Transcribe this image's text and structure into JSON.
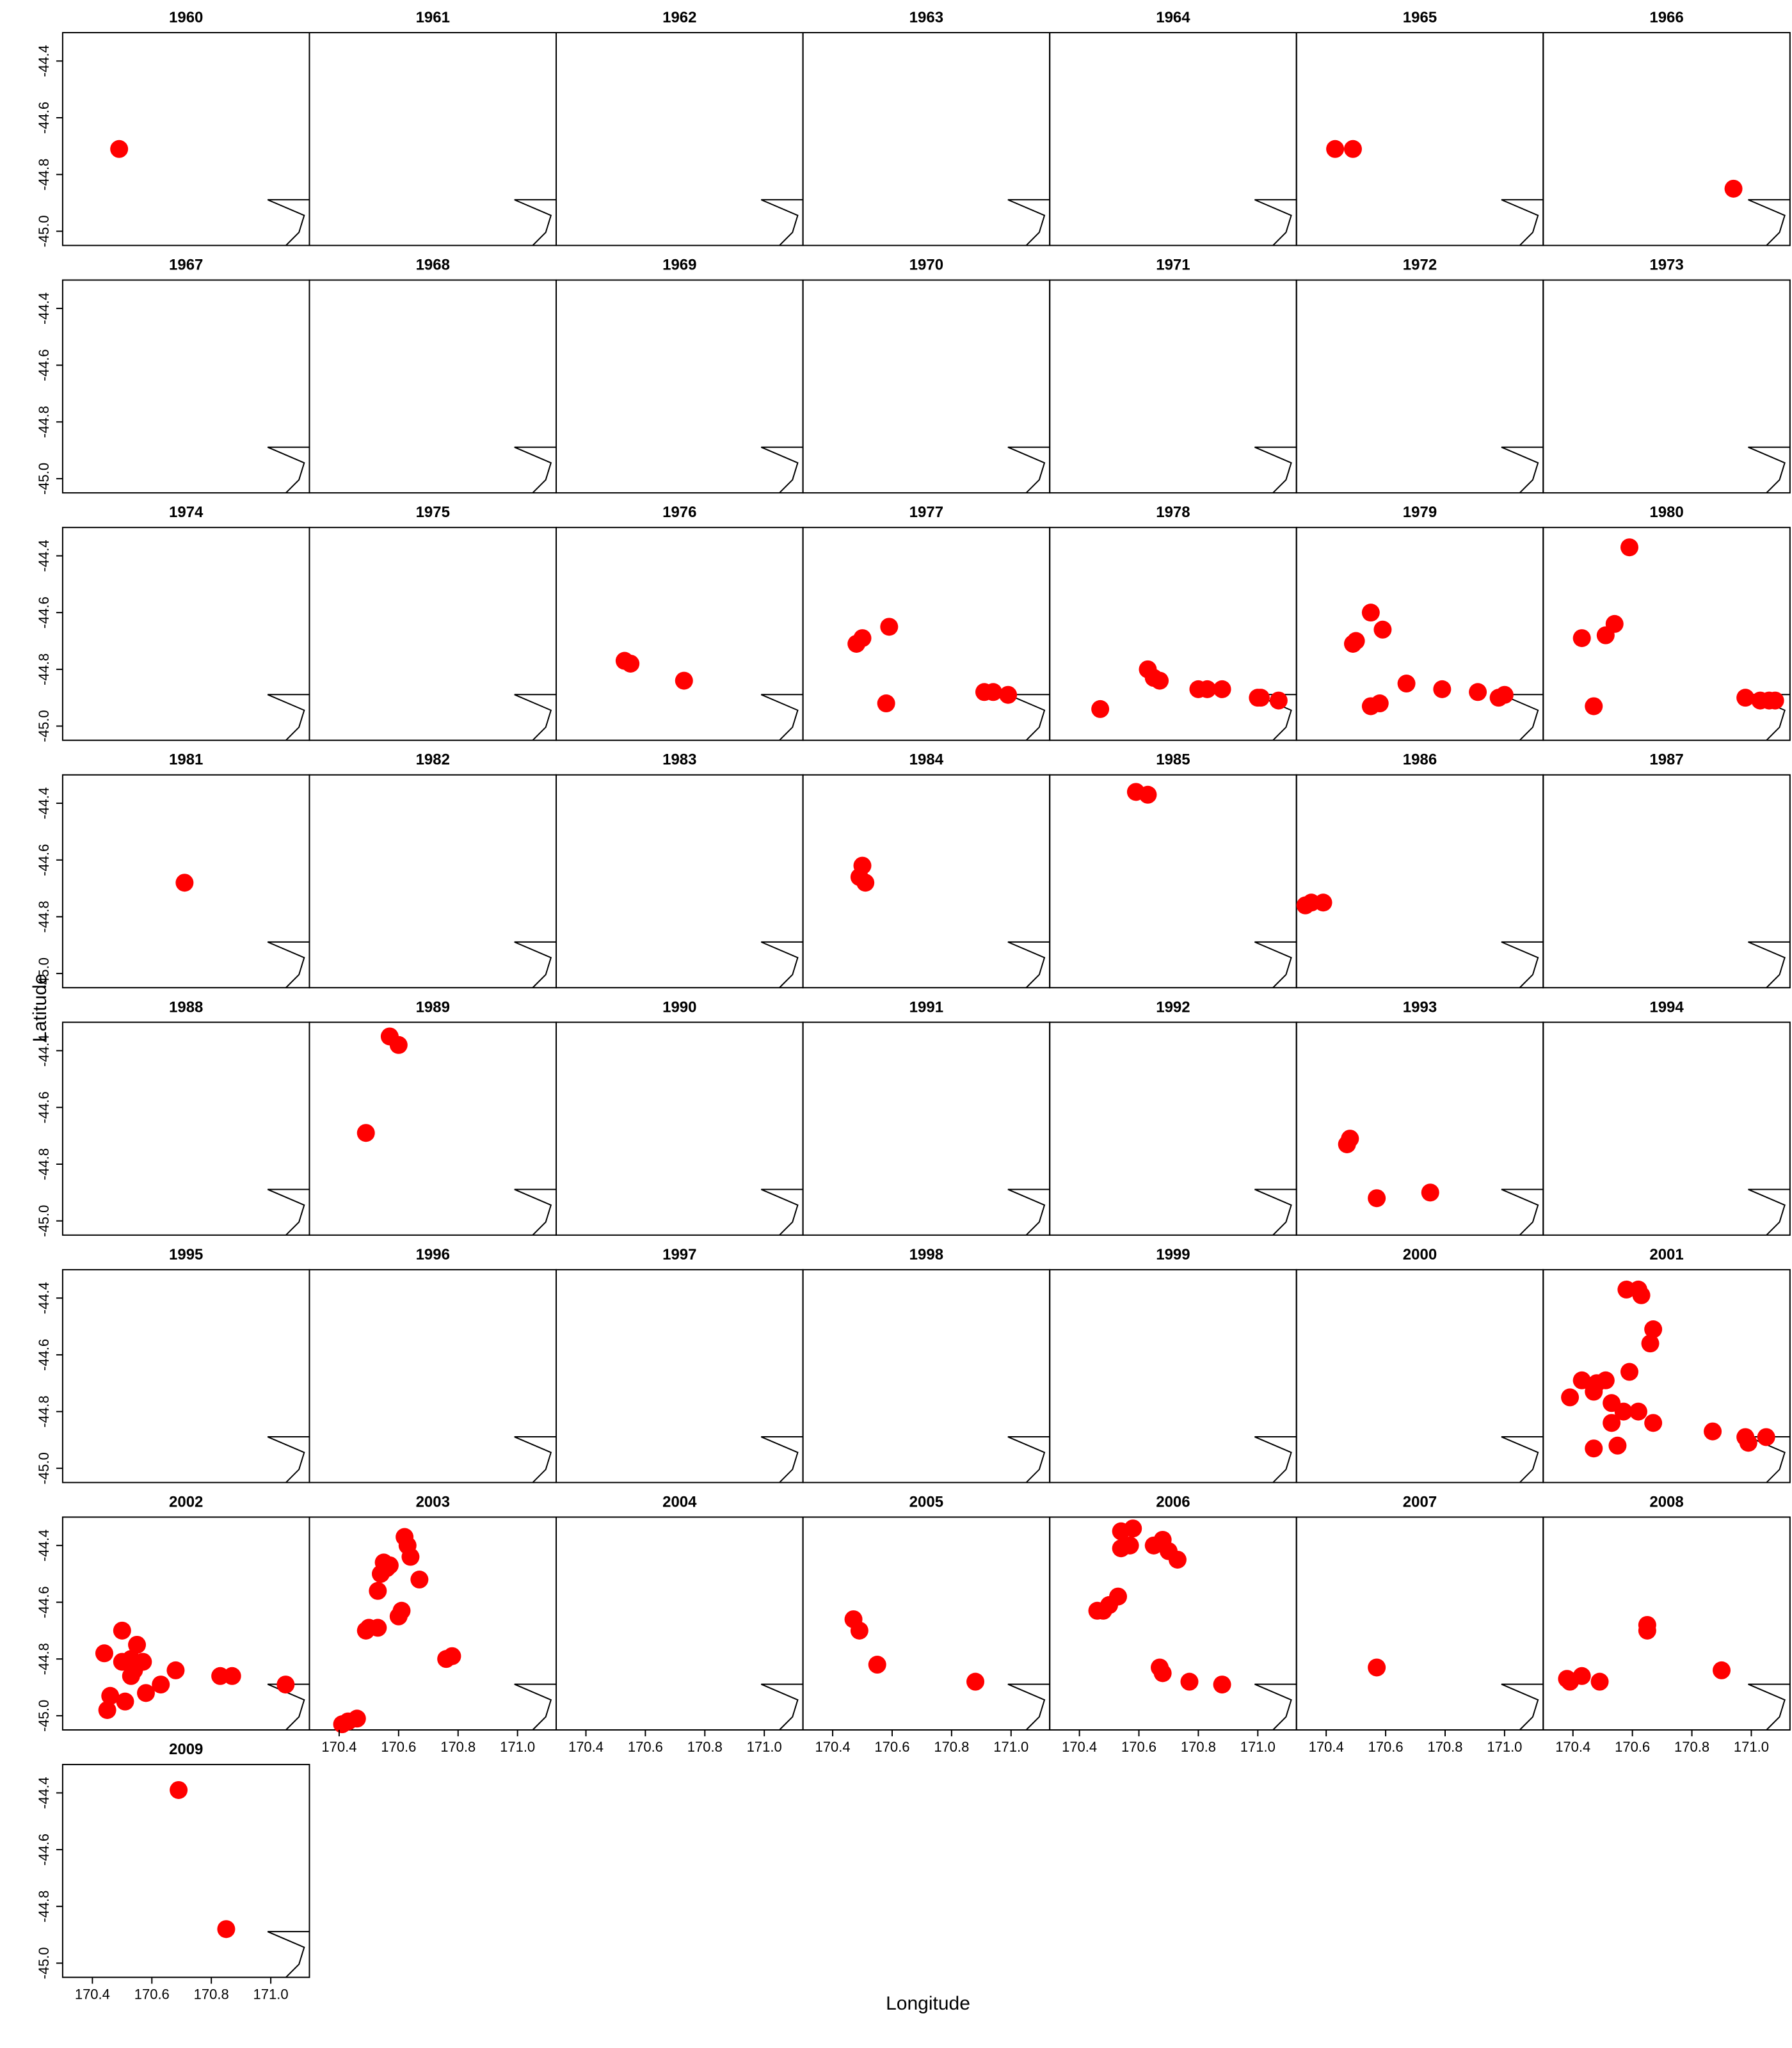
{
  "chart_data": {
    "type": "scatter",
    "xlabel": "Longitude",
    "ylabel": "Latitude",
    "color": "#ff0000",
    "xlim": [
      170.3,
      171.13
    ],
    "ylim": [
      -45.05,
      -44.3
    ],
    "xticks": [
      170.4,
      170.6,
      170.8,
      {
        "value": 171,
        "label": "171.0"
      }
    ],
    "yticks": [
      -44.4,
      -44.6,
      -44.8,
      {
        "value": -45,
        "label": "-45.0"
      }
    ],
    "panels": [
      {
        "title": "1960",
        "x": [
          170.49
        ],
        "y": [
          -44.71
        ]
      },
      {
        "title": "1961",
        "x": [],
        "y": []
      },
      {
        "title": "1962",
        "x": [],
        "y": []
      },
      {
        "title": "1963",
        "x": [],
        "y": []
      },
      {
        "title": "1964",
        "x": [],
        "y": []
      },
      {
        "title": "1965",
        "x": [
          170.43,
          170.49
        ],
        "y": [
          -44.71,
          -44.71
        ]
      },
      {
        "title": "1966",
        "x": [
          170.94
        ],
        "y": [
          -44.85
        ]
      },
      {
        "title": "1967",
        "x": [],
        "y": []
      },
      {
        "title": "1968",
        "x": [],
        "y": []
      },
      {
        "title": "1969",
        "x": [],
        "y": []
      },
      {
        "title": "1970",
        "x": [],
        "y": []
      },
      {
        "title": "1971",
        "x": [],
        "y": []
      },
      {
        "title": "1972",
        "x": [],
        "y": []
      },
      {
        "title": "1973",
        "x": [],
        "y": []
      },
      {
        "title": "1974",
        "x": [],
        "y": []
      },
      {
        "title": "1975",
        "x": [],
        "y": []
      },
      {
        "title": "1976",
        "x": [
          170.53,
          170.55,
          170.73
        ],
        "y": [
          -44.77,
          -44.78,
          -44.84
        ]
      },
      {
        "title": "1977",
        "x": [
          170.48,
          170.5,
          170.59,
          170.58,
          170.91,
          170.94,
          170.99
        ],
        "y": [
          -44.71,
          -44.69,
          -44.65,
          -44.92,
          -44.88,
          -44.88,
          -44.89
        ]
      },
      {
        "title": "1978",
        "x": [
          170.47,
          170.63,
          170.65,
          170.67,
          170.8,
          170.83,
          170.88,
          171.0,
          171.01,
          171.07
        ],
        "y": [
          -44.94,
          -44.8,
          -44.83,
          -44.84,
          -44.87,
          -44.87,
          -44.87,
          -44.9,
          -44.9,
          -44.91
        ]
      },
      {
        "title": "1979",
        "x": [
          170.55,
          170.59,
          170.49,
          170.5,
          170.55,
          170.58,
          170.67,
          170.79,
          170.91,
          170.98,
          171.0
        ],
        "y": [
          -44.6,
          -44.66,
          -44.71,
          -44.7,
          -44.93,
          -44.92,
          -44.85,
          -44.87,
          -44.88,
          -44.9,
          -44.89
        ]
      },
      {
        "title": "1980",
        "x": [
          170.59,
          170.54,
          170.51,
          170.43,
          170.47,
          170.98,
          171.03,
          171.06,
          171.08
        ],
        "y": [
          -44.37,
          -44.64,
          -44.68,
          -44.69,
          -44.93,
          -44.9,
          -44.91,
          -44.91,
          -44.91
        ]
      },
      {
        "title": "1981",
        "x": [
          170.71
        ],
        "y": [
          -44.68
        ]
      },
      {
        "title": "1982",
        "x": [],
        "y": []
      },
      {
        "title": "1983",
        "x": [],
        "y": []
      },
      {
        "title": "1984",
        "x": [
          170.5,
          170.49,
          170.51
        ],
        "y": [
          -44.62,
          -44.66,
          -44.68
        ]
      },
      {
        "title": "1985",
        "x": [
          170.59,
          170.63
        ],
        "y": [
          -44.36,
          -44.37
        ]
      },
      {
        "title": "1986",
        "x": [
          170.33,
          170.35,
          170.39
        ],
        "y": [
          -44.76,
          -44.75,
          -44.75
        ]
      },
      {
        "title": "1987",
        "x": [],
        "y": []
      },
      {
        "title": "1988",
        "x": [],
        "y": []
      },
      {
        "title": "1989",
        "x": [
          170.57,
          170.6,
          170.49
        ],
        "y": [
          -44.35,
          -44.38,
          -44.69
        ]
      },
      {
        "title": "1990",
        "x": [],
        "y": []
      },
      {
        "title": "1991",
        "x": [],
        "y": []
      },
      {
        "title": "1992",
        "x": [],
        "y": []
      },
      {
        "title": "1993",
        "x": [
          170.48,
          170.47,
          170.57,
          170.75
        ],
        "y": [
          -44.71,
          -44.73,
          -44.92,
          -44.9
        ]
      },
      {
        "title": "1994",
        "x": [],
        "y": []
      },
      {
        "title": "1995",
        "x": [],
        "y": []
      },
      {
        "title": "1996",
        "x": [],
        "y": []
      },
      {
        "title": "1997",
        "x": [],
        "y": []
      },
      {
        "title": "1998",
        "x": [],
        "y": []
      },
      {
        "title": "1999",
        "x": [],
        "y": []
      },
      {
        "title": "2000",
        "x": [],
        "y": []
      },
      {
        "title": "2001",
        "x": [
          170.58,
          170.62,
          170.63,
          170.67,
          170.66,
          170.59,
          170.43,
          170.39,
          170.48,
          170.51,
          170.47,
          170.53,
          170.57,
          170.62,
          170.67,
          170.53,
          170.47,
          170.55,
          170.87,
          170.98,
          171.05,
          170.99
        ],
        "y": [
          -44.37,
          -44.37,
          -44.39,
          -44.51,
          -44.56,
          -44.66,
          -44.69,
          -44.75,
          -44.7,
          -44.69,
          -44.73,
          -44.77,
          -44.8,
          -44.8,
          -44.84,
          -44.84,
          -44.93,
          -44.92,
          -44.87,
          -44.89,
          -44.89,
          -44.91
        ]
      },
      {
        "title": "2002",
        "x": [
          170.5,
          170.44,
          170.55,
          170.53,
          170.5,
          170.57,
          170.53,
          170.54,
          170.46,
          170.51,
          170.58,
          170.63,
          170.68,
          170.83,
          170.87,
          170.45,
          171.05
        ],
        "y": [
          -44.7,
          -44.78,
          -44.75,
          -44.8,
          -44.81,
          -44.81,
          -44.86,
          -44.84,
          -44.93,
          -44.95,
          -44.92,
          -44.89,
          -44.84,
          -44.86,
          -44.86,
          -44.98,
          -44.89
        ]
      },
      {
        "title": "2003",
        "x": [
          170.62,
          170.63,
          170.64,
          170.67,
          170.55,
          170.57,
          170.54,
          170.56,
          170.53,
          170.61,
          170.6,
          170.53,
          170.49,
          170.5,
          170.76,
          170.78,
          170.46,
          170.41,
          170.43
        ],
        "y": [
          -44.37,
          -44.4,
          -44.44,
          -44.52,
          -44.46,
          -44.47,
          -44.5,
          -44.48,
          -44.56,
          -44.63,
          -44.65,
          -44.69,
          -44.7,
          -44.69,
          -44.8,
          -44.79,
          -45.01,
          -45.03,
          -45.02
        ]
      },
      {
        "title": "2004",
        "x": [],
        "y": []
      },
      {
        "title": "2005",
        "x": [
          170.47,
          170.49,
          170.55,
          170.88
        ],
        "y": [
          -44.66,
          -44.7,
          -44.82,
          -44.88
        ]
      },
      {
        "title": "2006",
        "x": [
          170.54,
          170.58,
          170.57,
          170.54,
          170.65,
          170.68,
          170.7,
          170.73,
          170.53,
          170.5,
          170.46,
          170.48,
          170.67,
          170.68,
          170.77,
          170.88
        ],
        "y": [
          -44.35,
          -44.34,
          -44.4,
          -44.41,
          -44.4,
          -44.38,
          -44.42,
          -44.45,
          -44.58,
          -44.61,
          -44.63,
          -44.63,
          -44.83,
          -44.85,
          -44.88,
          -44.89
        ]
      },
      {
        "title": "2007",
        "x": [
          170.57
        ],
        "y": [
          -44.83
        ]
      },
      {
        "title": "2008",
        "x": [
          170.65,
          170.65,
          170.38,
          170.39,
          170.43,
          170.49,
          170.9
        ],
        "y": [
          -44.68,
          -44.7,
          -44.87,
          -44.88,
          -44.86,
          -44.88,
          -44.84
        ]
      },
      {
        "title": "2009",
        "x": [
          170.69,
          170.85
        ],
        "y": [
          -44.39,
          -44.88
        ]
      }
    ]
  }
}
